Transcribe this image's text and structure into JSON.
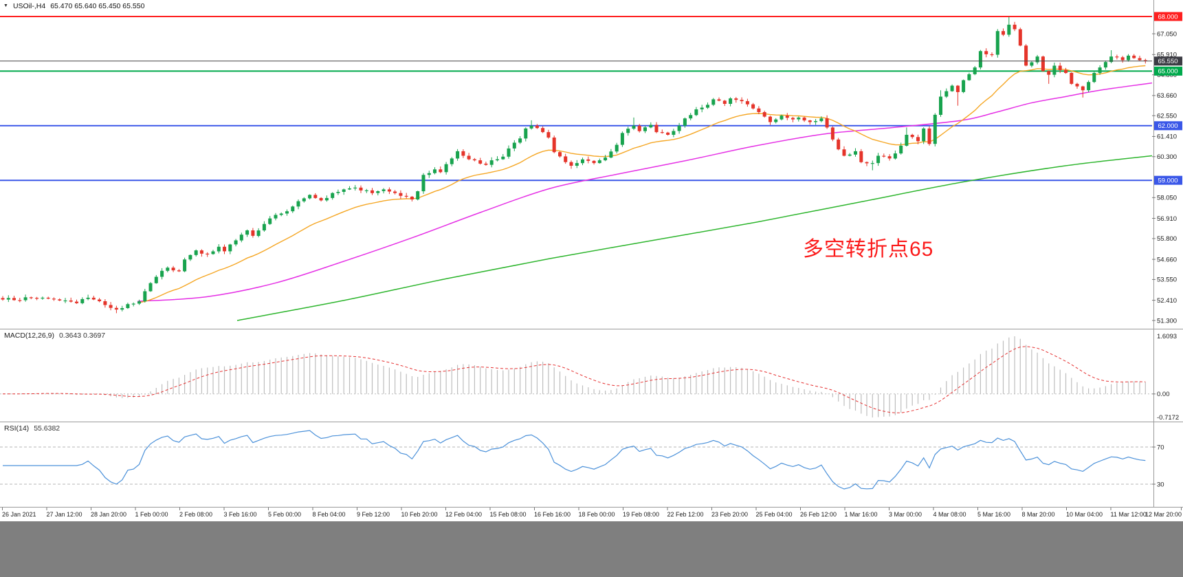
{
  "header": {
    "symbol": "USOil-,H4",
    "ohlc": "65.470 65.640 65.450 65.550",
    "dropdown_icon": "▼"
  },
  "colors": {
    "up": "#18a34e",
    "down": "#e5342a",
    "ma_fast": "#f5a623",
    "ma_mid": "#e530e5",
    "ma_slow": "#2db52d",
    "line_red": "#fe2020",
    "line_green": "#00a94c",
    "line_blue": "#3a57e8",
    "price_line": "#444444",
    "price_badge_bg": "#3c3c44",
    "macd_bar": "#bdbdbd",
    "macd_signal": "#e53030",
    "rsi_line": "#4a90d9",
    "axis_text": "#1a1a1a",
    "separator": "#9a9a9a",
    "bottom_strip": "#7f7f7f"
  },
  "chart_data": {
    "type": "candlestick",
    "symbol": "USOil-",
    "timeframe": "H4",
    "title_values": {
      "open": "65.470",
      "high": "65.640",
      "low": "65.450",
      "close": "65.550"
    },
    "x_labels": [
      "26 Jan 2021",
      "27 Jan 12:00",
      "28 Jan 20:00",
      "1 Feb 00:00",
      "2 Feb 08:00",
      "3 Feb 16:00",
      "5 Feb 00:00",
      "8 Feb 04:00",
      "9 Feb 12:00",
      "10 Feb 20:00",
      "12 Feb 04:00",
      "15 Feb 08:00",
      "16 Feb 16:00",
      "18 Feb 00:00",
      "19 Feb 08:00",
      "22 Feb 12:00",
      "23 Feb 20:00",
      "25 Feb 04:00",
      "26 Feb 12:00",
      "1 Mar 16:00",
      "3 Mar 00:00",
      "4 Mar 08:00",
      "5 Mar 16:00",
      "8 Mar 20:00",
      "10 Mar 04:00",
      "11 Mar 12:00",
      "12 Mar 20:00"
    ],
    "y_axis_ticks": [
      "67.050",
      "65.910",
      "64.800",
      "63.660",
      "62.550",
      "61.410",
      "60.300",
      "58.050",
      "56.910",
      "55.800",
      "54.660",
      "53.550",
      "52.410",
      "51.300"
    ],
    "horizontal_lines": [
      {
        "value": 68.0,
        "label": "68.000",
        "color_key": "line_red"
      },
      {
        "value": 65.0,
        "label": "65.000",
        "color_key": "line_green"
      },
      {
        "value": 62.0,
        "label": "62.000",
        "color_key": "line_blue"
      },
      {
        "value": 59.0,
        "label": "59.000",
        "color_key": "line_blue"
      }
    ],
    "current_price": {
      "value": 65.55,
      "label": "65.550"
    },
    "candles": {
      "count": 202,
      "note": "approximate close-path anchors [bar_index, price] read from the chart pixels",
      "anchors": [
        [
          0,
          52.45
        ],
        [
          7,
          52.55
        ],
        [
          11,
          52.4
        ],
        [
          13,
          52.25
        ],
        [
          15,
          52.55
        ],
        [
          18,
          52.15
        ],
        [
          20,
          51.9
        ],
        [
          22,
          52.2
        ],
        [
          24,
          52.35
        ],
        [
          26,
          53.35
        ],
        [
          27,
          53.7
        ],
        [
          29,
          54.2
        ],
        [
          31,
          54.0
        ],
        [
          32,
          54.65
        ],
        [
          34,
          55.15
        ],
        [
          36,
          54.95
        ],
        [
          38,
          55.35
        ],
        [
          39,
          55.1
        ],
        [
          41,
          55.7
        ],
        [
          43,
          56.25
        ],
        [
          44,
          55.95
        ],
        [
          46,
          56.6
        ],
        [
          48,
          57.1
        ],
        [
          50,
          57.3
        ],
        [
          52,
          57.85
        ],
        [
          54,
          58.2
        ],
        [
          56,
          57.9
        ],
        [
          58,
          58.3
        ],
        [
          60,
          58.5
        ],
        [
          62,
          58.6
        ],
        [
          64,
          58.45
        ],
        [
          65,
          58.3
        ],
        [
          67,
          58.5
        ],
        [
          69,
          58.3
        ],
        [
          71,
          58.1
        ],
        [
          72,
          57.95
        ],
        [
          73,
          58.4
        ],
        [
          74,
          59.3
        ],
        [
          76,
          59.6
        ],
        [
          77,
          59.45
        ],
        [
          79,
          60.2
        ],
        [
          80,
          60.6
        ],
        [
          81,
          60.35
        ],
        [
          83,
          60.1
        ],
        [
          85,
          59.85
        ],
        [
          86,
          60.1
        ],
        [
          88,
          60.3
        ],
        [
          89,
          60.75
        ],
        [
          91,
          61.3
        ],
        [
          92,
          61.85
        ],
        [
          93,
          62.0
        ],
        [
          95,
          61.65
        ],
        [
          96,
          61.35
        ],
        [
          97,
          60.55
        ],
        [
          99,
          60.0
        ],
        [
          100,
          59.8
        ],
        [
          102,
          60.15
        ],
        [
          104,
          59.95
        ],
        [
          105,
          60.1
        ],
        [
          106,
          60.25
        ],
        [
          108,
          60.95
        ],
        [
          109,
          61.6
        ],
        [
          111,
          62.0
        ],
        [
          112,
          61.7
        ],
        [
          114,
          62.05
        ],
        [
          115,
          61.65
        ],
        [
          117,
          61.5
        ],
        [
          119,
          62.0
        ],
        [
          120,
          62.4
        ],
        [
          122,
          62.9
        ],
        [
          124,
          63.15
        ],
        [
          125,
          63.45
        ],
        [
          127,
          63.2
        ],
        [
          128,
          63.5
        ],
        [
          130,
          63.35
        ],
        [
          132,
          62.95
        ],
        [
          134,
          62.5
        ],
        [
          135,
          62.2
        ],
        [
          137,
          62.55
        ],
        [
          139,
          62.35
        ],
        [
          140,
          62.45
        ],
        [
          142,
          62.2
        ],
        [
          144,
          62.4
        ],
        [
          145,
          61.9
        ],
        [
          147,
          60.7
        ],
        [
          148,
          60.35
        ],
        [
          150,
          60.6
        ],
        [
          151,
          60.0
        ],
        [
          153,
          59.95
        ],
        [
          154,
          60.35
        ],
        [
          156,
          60.2
        ],
        [
          158,
          60.9
        ],
        [
          159,
          61.5
        ],
        [
          161,
          61.15
        ],
        [
          162,
          61.85
        ],
        [
          163,
          61.0
        ],
        [
          164,
          62.6
        ],
        [
          165,
          63.6
        ],
        [
          167,
          64.2
        ],
        [
          168,
          63.85
        ],
        [
          169,
          64.5
        ],
        [
          171,
          65.2
        ],
        [
          172,
          66.1
        ],
        [
          174,
          65.9
        ],
        [
          175,
          67.2
        ],
        [
          176,
          67.0
        ],
        [
          177,
          67.55
        ],
        [
          178,
          67.3
        ],
        [
          179,
          66.4
        ],
        [
          180,
          65.3
        ],
        [
          182,
          65.8
        ],
        [
          183,
          65.0
        ],
        [
          184,
          64.8
        ],
        [
          185,
          65.3
        ],
        [
          187,
          64.9
        ],
        [
          188,
          64.3
        ],
        [
          190,
          63.95
        ],
        [
          191,
          64.4
        ],
        [
          192,
          64.9
        ],
        [
          194,
          65.5
        ],
        [
          195,
          65.8
        ],
        [
          197,
          65.6
        ],
        [
          198,
          65.85
        ],
        [
          200,
          65.6
        ],
        [
          201,
          65.55
        ]
      ],
      "wick_overrides": [
        {
          "i": 20,
          "low": 51.7
        },
        {
          "i": 93,
          "high": 62.3
        },
        {
          "i": 111,
          "high": 62.45
        },
        {
          "i": 153,
          "low": 59.55
        },
        {
          "i": 159,
          "high": 61.9
        },
        {
          "i": 165,
          "high": 63.95
        },
        {
          "i": 168,
          "low": 63.1
        },
        {
          "i": 177,
          "high": 67.98
        },
        {
          "i": 184,
          "low": 64.3
        },
        {
          "i": 190,
          "low": 63.55
        },
        {
          "i": 195,
          "high": 66.15
        }
      ]
    },
    "moving_averages": {
      "fast_ema_period": 20,
      "mid_anchors": [
        [
          200,
          52.35
        ],
        [
          300,
          52.6
        ],
        [
          400,
          53.35
        ],
        [
          500,
          54.55
        ],
        [
          600,
          55.85
        ],
        [
          700,
          57.25
        ],
        [
          800,
          58.55
        ],
        [
          900,
          59.35
        ],
        [
          1000,
          60.1
        ],
        [
          1100,
          60.9
        ],
        [
          1200,
          61.55
        ],
        [
          1300,
          61.9
        ],
        [
          1400,
          62.3
        ],
        [
          1450,
          62.75
        ],
        [
          1500,
          63.25
        ],
        [
          1550,
          63.6
        ],
        [
          1600,
          63.95
        ],
        [
          1676,
          64.35
        ]
      ],
      "slow_anchors": [
        [
          345,
          51.3
        ],
        [
          500,
          52.4
        ],
        [
          650,
          53.6
        ],
        [
          800,
          54.7
        ],
        [
          950,
          55.7
        ],
        [
          1100,
          56.7
        ],
        [
          1250,
          57.8
        ],
        [
          1400,
          58.9
        ],
        [
          1550,
          59.8
        ],
        [
          1676,
          60.35
        ]
      ]
    },
    "macd": {
      "label": "MACD(12,26,9)",
      "values": "0.3643 0.3697",
      "fast": 12,
      "slow": 26,
      "signal": 9,
      "scale_top": "1.6093",
      "scale_zero": "0.00",
      "scale_bottom": "-0.7172"
    },
    "rsi": {
      "label": "RSI(14)",
      "value": "55.6382",
      "period": 14,
      "levels": [
        "70",
        "30"
      ]
    },
    "annotation": {
      "text": "多空转折点65"
    }
  }
}
